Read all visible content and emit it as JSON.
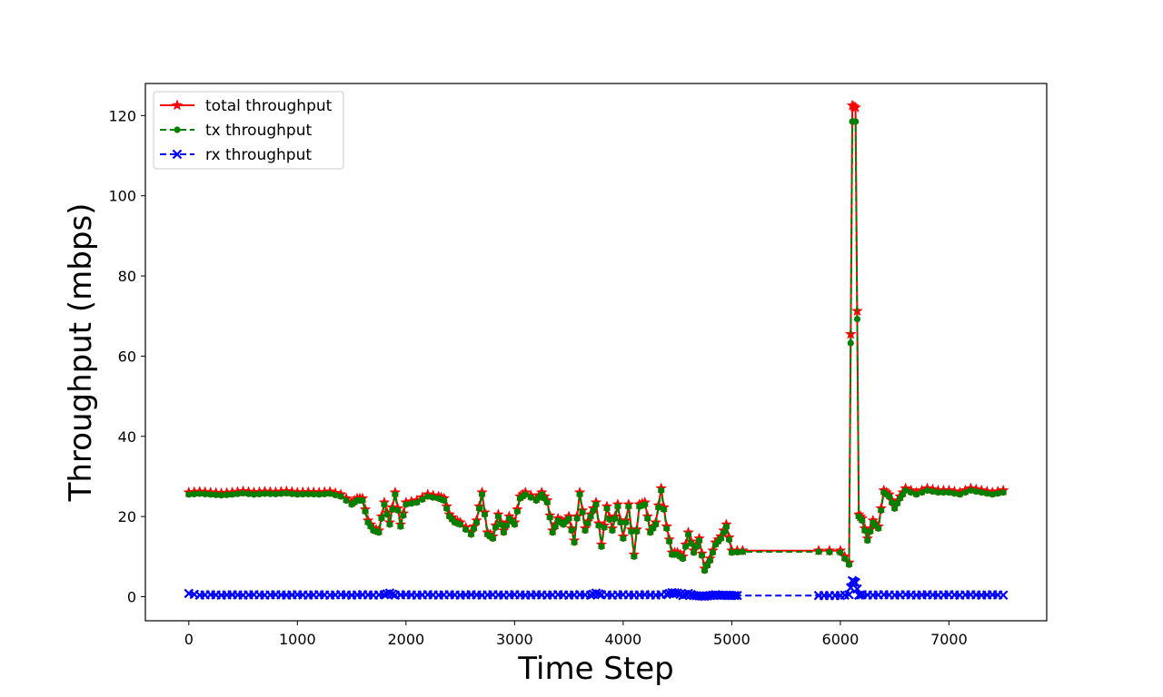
{
  "chart_data": {
    "type": "line",
    "title": "",
    "xlabel": "Time Step",
    "ylabel": "Throughput (mbps)",
    "xlim": [
      -400,
      7900
    ],
    "ylim": [
      -6,
      128
    ],
    "xticks": [
      "0",
      "1000",
      "2000",
      "3000",
      "4000",
      "5000",
      "6000",
      "7000"
    ],
    "yticks": [
      "0",
      "20",
      "40",
      "60",
      "80",
      "100",
      "120"
    ],
    "grid": false,
    "legend_position": "top-left",
    "series": [
      {
        "name": "total throughput",
        "color": "#ff0000",
        "line_style": "solid",
        "marker": "star",
        "points": [
          [
            0,
            26
          ],
          [
            100,
            26.2
          ],
          [
            200,
            26
          ],
          [
            300,
            25.8
          ],
          [
            400,
            26
          ],
          [
            500,
            26.3
          ],
          [
            600,
            26
          ],
          [
            700,
            26.2
          ],
          [
            800,
            26.1
          ],
          [
            900,
            26.3
          ],
          [
            1000,
            26
          ],
          [
            1100,
            26.1
          ],
          [
            1200,
            26
          ],
          [
            1300,
            26.2
          ],
          [
            1400,
            25.5
          ],
          [
            1500,
            23.5
          ],
          [
            1550,
            24.5
          ],
          [
            1600,
            24.5
          ],
          [
            1650,
            19
          ],
          [
            1700,
            17
          ],
          [
            1750,
            16.5
          ],
          [
            1800,
            23.5
          ],
          [
            1850,
            18.5
          ],
          [
            1900,
            26
          ],
          [
            1950,
            18
          ],
          [
            2000,
            23.5
          ],
          [
            2100,
            24
          ],
          [
            2200,
            25.5
          ],
          [
            2300,
            25
          ],
          [
            2350,
            24.5
          ],
          [
            2400,
            20.5
          ],
          [
            2450,
            19
          ],
          [
            2500,
            18.5
          ],
          [
            2600,
            16
          ],
          [
            2650,
            19
          ],
          [
            2700,
            26
          ],
          [
            2750,
            16
          ],
          [
            2800,
            15
          ],
          [
            2850,
            20.5
          ],
          [
            2900,
            16.5
          ],
          [
            2950,
            20
          ],
          [
            3000,
            18.5
          ],
          [
            3050,
            25
          ],
          [
            3100,
            26
          ],
          [
            3200,
            24.5
          ],
          [
            3250,
            26
          ],
          [
            3300,
            24
          ],
          [
            3350,
            16.5
          ],
          [
            3400,
            19.5
          ],
          [
            3450,
            18.5
          ],
          [
            3500,
            20
          ],
          [
            3550,
            14
          ],
          [
            3600,
            26
          ],
          [
            3650,
            17
          ],
          [
            3700,
            20.5
          ],
          [
            3750,
            23.5
          ],
          [
            3800,
            13
          ],
          [
            3850,
            22.5
          ],
          [
            3900,
            17
          ],
          [
            3950,
            23
          ],
          [
            4000,
            15
          ],
          [
            4050,
            23
          ],
          [
            4100,
            10.5
          ],
          [
            4150,
            23
          ],
          [
            4200,
            23.5
          ],
          [
            4250,
            16.5
          ],
          [
            4300,
            18.5
          ],
          [
            4350,
            27
          ],
          [
            4400,
            17.5
          ],
          [
            4450,
            11
          ],
          [
            4500,
            11
          ],
          [
            4550,
            10
          ],
          [
            4600,
            16
          ],
          [
            4650,
            11.5
          ],
          [
            4700,
            14.5
          ],
          [
            4750,
            7
          ],
          [
            4800,
            9.5
          ],
          [
            4850,
            13.5
          ],
          [
            4900,
            15
          ],
          [
            4950,
            18
          ],
          [
            5000,
            11.5
          ],
          [
            5100,
            11.5
          ],
          [
            5800,
            11.5
          ],
          [
            6000,
            11.5
          ],
          [
            6080,
            8.5
          ],
          [
            6110,
            122.5
          ],
          [
            6140,
            122
          ],
          [
            6170,
            20.5
          ],
          [
            6200,
            19.5
          ],
          [
            6250,
            14.5
          ],
          [
            6300,
            19
          ],
          [
            6350,
            17.5
          ],
          [
            6400,
            26.5
          ],
          [
            6450,
            25.5
          ],
          [
            6500,
            22.5
          ],
          [
            6550,
            25
          ],
          [
            6600,
            27
          ],
          [
            6700,
            26
          ],
          [
            6800,
            27
          ],
          [
            6900,
            26.5
          ],
          [
            7000,
            26.5
          ],
          [
            7100,
            26
          ],
          [
            7200,
            27
          ],
          [
            7300,
            26.5
          ],
          [
            7400,
            26
          ],
          [
            7500,
            26.5
          ]
        ]
      },
      {
        "name": "tx throughput",
        "color": "#008000",
        "line_style": "dashed",
        "marker": "circle",
        "points": [
          [
            0,
            25.5
          ],
          [
            100,
            25.7
          ],
          [
            200,
            25.5
          ],
          [
            300,
            25.3
          ],
          [
            400,
            25.5
          ],
          [
            500,
            25.8
          ],
          [
            600,
            25.5
          ],
          [
            700,
            25.7
          ],
          [
            800,
            25.6
          ],
          [
            900,
            25.8
          ],
          [
            1000,
            25.5
          ],
          [
            1100,
            25.6
          ],
          [
            1200,
            25.5
          ],
          [
            1300,
            25.7
          ],
          [
            1400,
            25
          ],
          [
            1500,
            23
          ],
          [
            1550,
            24
          ],
          [
            1600,
            24
          ],
          [
            1650,
            18.5
          ],
          [
            1700,
            16.5
          ],
          [
            1750,
            16
          ],
          [
            1800,
            23
          ],
          [
            1850,
            18
          ],
          [
            1900,
            25.5
          ],
          [
            1950,
            17.5
          ],
          [
            2000,
            23
          ],
          [
            2100,
            23.5
          ],
          [
            2200,
            25
          ],
          [
            2300,
            24.5
          ],
          [
            2350,
            24
          ],
          [
            2400,
            20
          ],
          [
            2450,
            18.5
          ],
          [
            2500,
            18
          ],
          [
            2600,
            15.5
          ],
          [
            2650,
            18.5
          ],
          [
            2700,
            25.5
          ],
          [
            2750,
            15.5
          ],
          [
            2800,
            14.5
          ],
          [
            2850,
            20
          ],
          [
            2900,
            16
          ],
          [
            2950,
            19.5
          ],
          [
            3000,
            18
          ],
          [
            3050,
            24.5
          ],
          [
            3100,
            25.5
          ],
          [
            3200,
            24
          ],
          [
            3250,
            25.5
          ],
          [
            3300,
            23.5
          ],
          [
            3350,
            16
          ],
          [
            3400,
            19
          ],
          [
            3450,
            18
          ],
          [
            3500,
            19.5
          ],
          [
            3550,
            13.5
          ],
          [
            3600,
            25.5
          ],
          [
            3650,
            16.5
          ],
          [
            3700,
            20
          ],
          [
            3750,
            23
          ],
          [
            3800,
            12.5
          ],
          [
            3850,
            22
          ],
          [
            3900,
            16.5
          ],
          [
            3950,
            22.5
          ],
          [
            4000,
            14.5
          ],
          [
            4050,
            22.5
          ],
          [
            4100,
            10
          ],
          [
            4150,
            22.5
          ],
          [
            4200,
            23
          ],
          [
            4250,
            16
          ],
          [
            4300,
            18
          ],
          [
            4350,
            26.5
          ],
          [
            4400,
            17
          ],
          [
            4450,
            10.5
          ],
          [
            4500,
            10.5
          ],
          [
            4550,
            9.5
          ],
          [
            4600,
            15.5
          ],
          [
            4650,
            11
          ],
          [
            4700,
            14
          ],
          [
            4750,
            6.5
          ],
          [
            4800,
            9
          ],
          [
            4850,
            13
          ],
          [
            4900,
            14.5
          ],
          [
            4950,
            17.5
          ],
          [
            5000,
            11
          ],
          [
            5100,
            11.2
          ],
          [
            5800,
            11.2
          ],
          [
            6000,
            11
          ],
          [
            6080,
            8
          ],
          [
            6110,
            118.5
          ],
          [
            6140,
            118.5
          ],
          [
            6170,
            20
          ],
          [
            6200,
            19
          ],
          [
            6250,
            14
          ],
          [
            6300,
            18.5
          ],
          [
            6350,
            17
          ],
          [
            6400,
            26
          ],
          [
            6450,
            25
          ],
          [
            6500,
            22
          ],
          [
            6550,
            24.5
          ],
          [
            6600,
            26.5
          ],
          [
            6700,
            25.5
          ],
          [
            6800,
            26.5
          ],
          [
            6900,
            26
          ],
          [
            7000,
            26
          ],
          [
            7100,
            25.5
          ],
          [
            7200,
            26.5
          ],
          [
            7300,
            26
          ],
          [
            7400,
            25.5
          ],
          [
            7500,
            26
          ]
        ]
      },
      {
        "name": "rx throughput",
        "color": "#0000ff",
        "line_style": "dashed",
        "marker": "x",
        "points": [
          [
            0,
            0.8
          ],
          [
            100,
            0.4
          ],
          [
            200,
            0.5
          ],
          [
            300,
            0.4
          ],
          [
            400,
            0.5
          ],
          [
            500,
            0.4
          ],
          [
            600,
            0.5
          ],
          [
            700,
            0.4
          ],
          [
            800,
            0.5
          ],
          [
            900,
            0.4
          ],
          [
            1000,
            0.5
          ],
          [
            1100,
            0.4
          ],
          [
            1200,
            0.5
          ],
          [
            1300,
            0.4
          ],
          [
            1400,
            0.5
          ],
          [
            1500,
            0.4
          ],
          [
            1600,
            0.5
          ],
          [
            1700,
            0.4
          ],
          [
            1800,
            0.5
          ],
          [
            1850,
            0.9
          ],
          [
            1900,
            0.4
          ],
          [
            2000,
            0.5
          ],
          [
            2100,
            0.4
          ],
          [
            2200,
            0.5
          ],
          [
            2300,
            0.4
          ],
          [
            2400,
            0.5
          ],
          [
            2500,
            0.4
          ],
          [
            2600,
            0.5
          ],
          [
            2700,
            0.4
          ],
          [
            2800,
            0.5
          ],
          [
            2900,
            0.4
          ],
          [
            3000,
            0.5
          ],
          [
            3100,
            0.4
          ],
          [
            3200,
            0.5
          ],
          [
            3300,
            0.4
          ],
          [
            3400,
            0.5
          ],
          [
            3500,
            0.4
          ],
          [
            3600,
            0.5
          ],
          [
            3700,
            0.4
          ],
          [
            3750,
            0.9
          ],
          [
            3800,
            0.5
          ],
          [
            3900,
            0.4
          ],
          [
            4000,
            0.5
          ],
          [
            4100,
            0.4
          ],
          [
            4200,
            0.5
          ],
          [
            4300,
            0.4
          ],
          [
            4400,
            0.6
          ],
          [
            4450,
            1.0
          ],
          [
            4500,
            0.9
          ],
          [
            4550,
            0.3
          ],
          [
            4600,
            0.8
          ],
          [
            4650,
            0.3
          ],
          [
            4700,
            0.2
          ],
          [
            4750,
            0.1
          ],
          [
            4800,
            0.3
          ],
          [
            4850,
            0.5
          ],
          [
            4900,
            0.3
          ],
          [
            4950,
            0.4
          ],
          [
            5000,
            0.3
          ],
          [
            5050,
            0.3
          ],
          [
            5800,
            0.3
          ],
          [
            5900,
            0.3
          ],
          [
            6000,
            0.3
          ],
          [
            6080,
            0.5
          ],
          [
            6110,
            4
          ],
          [
            6140,
            3.5
          ],
          [
            6170,
            0.4
          ],
          [
            6200,
            0.5
          ],
          [
            6300,
            0.4
          ],
          [
            6400,
            0.5
          ],
          [
            6500,
            0.4
          ],
          [
            6600,
            0.5
          ],
          [
            6700,
            0.4
          ],
          [
            6800,
            0.5
          ],
          [
            6900,
            0.4
          ],
          [
            7000,
            0.5
          ],
          [
            7100,
            0.4
          ],
          [
            7200,
            0.5
          ],
          [
            7300,
            0.4
          ],
          [
            7400,
            0.5
          ],
          [
            7500,
            0.4
          ]
        ]
      }
    ]
  }
}
